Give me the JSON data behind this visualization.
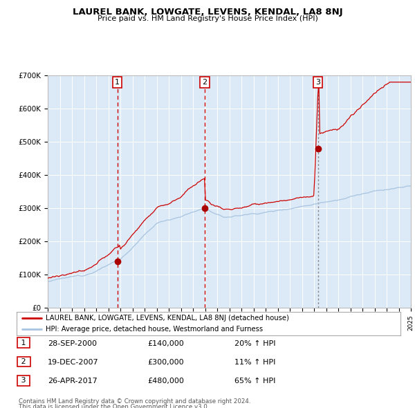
{
  "title": "LAUREL BANK, LOWGATE, LEVENS, KENDAL, LA8 8NJ",
  "subtitle": "Price paid vs. HM Land Registry's House Price Index (HPI)",
  "background_color": "#dce9f7",
  "plot_bg_color": "#dce9f7",
  "hpi_line_color": "#a8c4e0",
  "price_line_color": "#cc0000",
  "marker_color": "#aa0000",
  "vline_color_red": "#cc0000",
  "vline_color_grey": "#888888",
  "ylim": [
    0,
    700000
  ],
  "yticks": [
    0,
    100000,
    200000,
    300000,
    400000,
    500000,
    600000,
    700000
  ],
  "ytick_labels": [
    "£0",
    "£100K",
    "£200K",
    "£300K",
    "£400K",
    "£500K",
    "£600K",
    "£700K"
  ],
  "year_start": 1995,
  "year_end": 2025,
  "sale_years_float": [
    2000.748,
    2007.966,
    2017.319
  ],
  "sale_prices": [
    140000,
    300000,
    480000
  ],
  "sale_labels": [
    "1",
    "2",
    "3"
  ],
  "sale_pct_hpi": [
    "20% ↑ HPI",
    "11% ↑ HPI",
    "65% ↑ HPI"
  ],
  "sale_date_labels": [
    "28-SEP-2000",
    "19-DEC-2007",
    "26-APR-2017"
  ],
  "sale_price_labels": [
    "£140,000",
    "£300,000",
    "£480,000"
  ],
  "legend_line1": "LAUREL BANK, LOWGATE, LEVENS, KENDAL, LA8 8NJ (detached house)",
  "legend_line2": "HPI: Average price, detached house, Westmorland and Furness",
  "footer1": "Contains HM Land Registry data © Crown copyright and database right 2024.",
  "footer2": "This data is licensed under the Open Government Licence v3.0."
}
